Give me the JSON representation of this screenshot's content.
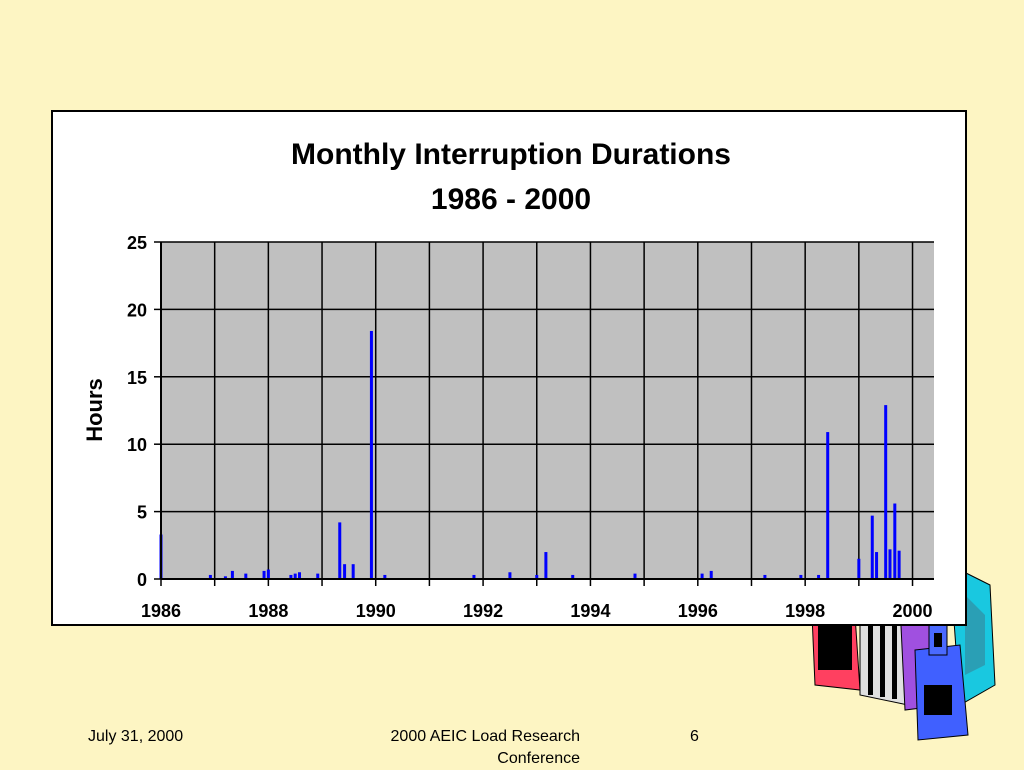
{
  "slide": {
    "footer_date": "July 31, 2000",
    "footer_conference": "2000 AEIC Load Research Conference",
    "page_number": "6"
  },
  "colors": {
    "background": "#fdf5c3",
    "plot_area": "#c0c0c0",
    "bars": "#0000ff",
    "gridlines": "#000000"
  },
  "chart_data": {
    "type": "bar",
    "title": "Monthly Interruption Durations",
    "subtitle": "1986 - 2000",
    "xlabel": "",
    "ylabel": "Hours",
    "ylim": [
      0,
      25
    ],
    "xlim": [
      1986,
      2000.4
    ],
    "yticks": [
      "0",
      "5",
      "10",
      "15",
      "20",
      "25"
    ],
    "xticks": [
      "1986",
      "1988",
      "1990",
      "1992",
      "1994",
      "1996",
      "1998",
      "2000"
    ],
    "grid": true,
    "legend": "none",
    "series": [
      {
        "x": [
          1986.0,
          1986.92,
          1987.2,
          1987.33,
          1987.58,
          1987.92,
          1988.0,
          1988.42,
          1988.5,
          1988.58,
          1988.92,
          1989.33,
          1989.42,
          1989.58,
          1989.92,
          1990.17,
          1991.83,
          1992.5,
          1993.0,
          1993.17,
          1993.67,
          1994.83,
          1996.08,
          1996.25,
          1997.25,
          1997.92,
          1998.25,
          1998.42,
          1999.0,
          1999.25,
          1999.33,
          1999.5,
          1999.58,
          1999.67,
          1999.75
        ],
        "values": [
          3.3,
          0.3,
          0.2,
          0.6,
          0.4,
          0.6,
          0.7,
          0.3,
          0.4,
          0.5,
          0.4,
          4.2,
          1.1,
          1.1,
          18.4,
          0.3,
          0.3,
          0.5,
          0.3,
          2.0,
          0.3,
          0.4,
          0.4,
          0.6,
          0.3,
          0.3,
          0.3,
          10.9,
          1.5,
          4.7,
          2.0,
          12.9,
          2.2,
          5.6,
          2.1
        ]
      }
    ]
  }
}
